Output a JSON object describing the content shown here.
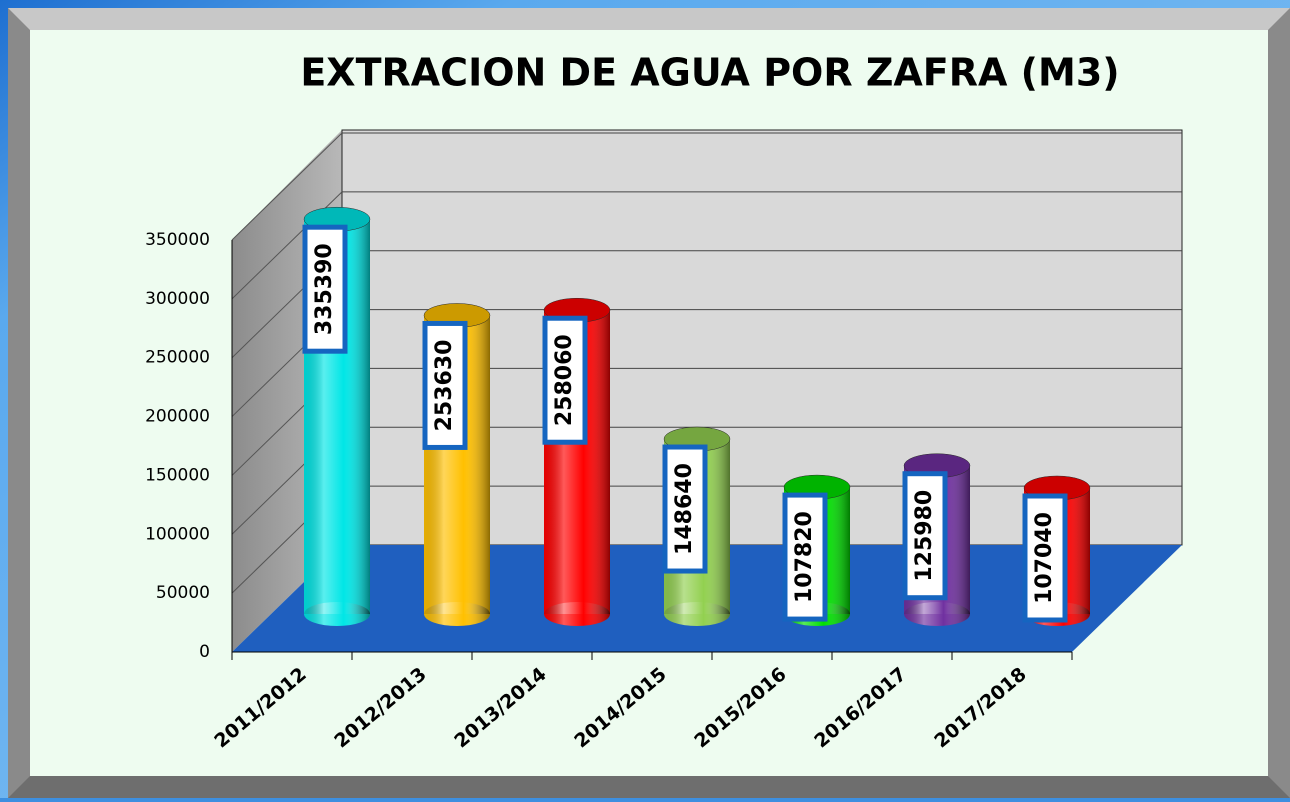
{
  "chart_data": {
    "type": "bar3d",
    "title": "EXTRACION DE AGUA POR ZAFRA (M3)",
    "categories": [
      "2011/2012",
      "2012/2013",
      "2013/2014",
      "2014/2015",
      "2015/2016",
      "2016/2017",
      "2017/2018"
    ],
    "values": [
      335390,
      253630,
      258060,
      148640,
      107820,
      125980,
      107040
    ],
    "colors": [
      "#00e6e6",
      "#ffc000",
      "#ff0000",
      "#92d050",
      "#00e000",
      "#7030a0",
      "#ff0000"
    ],
    "ylim": [
      0,
      350000
    ],
    "yticks": [
      0,
      50000,
      100000,
      150000,
      200000,
      250000,
      300000,
      350000
    ],
    "grid": true
  }
}
